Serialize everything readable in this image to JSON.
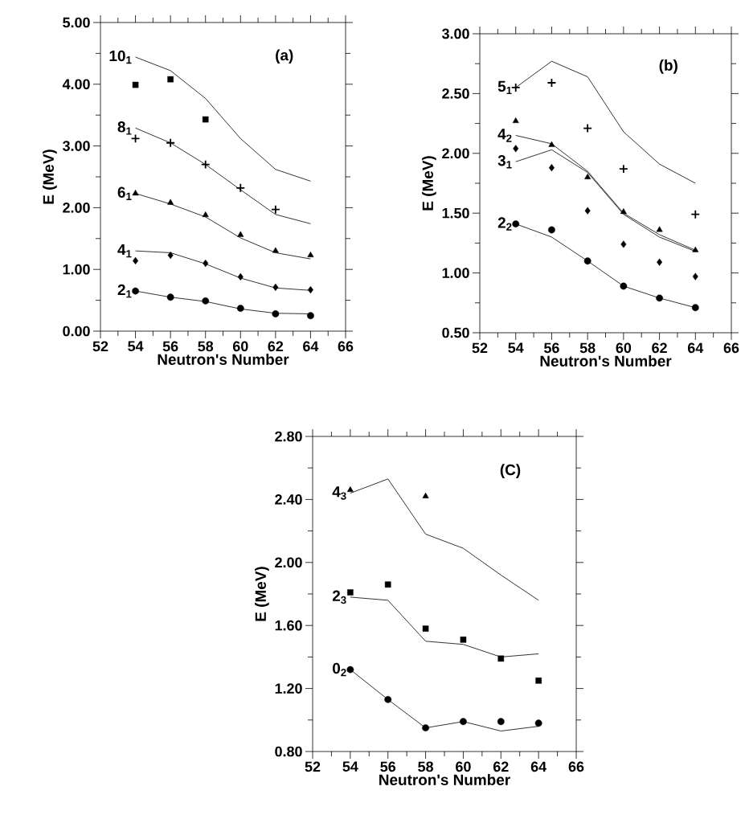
{
  "chart_data": [
    {
      "type": "line",
      "xlabel": "Neutron's Number",
      "ylabel": "E (MeV)",
      "xlim": [
        52,
        66
      ],
      "ylim": [
        0,
        5
      ],
      "x": [
        54,
        56,
        58,
        60,
        62,
        64
      ],
      "xticks": [
        52,
        54,
        56,
        58,
        60,
        62,
        64,
        66
      ],
      "yticks": [
        {
          "value": 0,
          "label": "0.00"
        },
        {
          "value": 1,
          "label": "1.00"
        },
        {
          "value": 2,
          "label": "2.00"
        },
        {
          "value": 3,
          "label": "3.00"
        },
        {
          "value": 4,
          "label": "4.00"
        },
        {
          "value": 5,
          "label": "5.00"
        }
      ],
      "series": [
        {
          "type": "scatter",
          "marker": "square",
          "color": "#000000",
          "values": [
            3.99,
            4.08,
            3.43,
            null,
            null,
            null
          ]
        },
        {
          "name": "10$_{1}$",
          "marker": "none",
          "color": "#000000",
          "values": [
            4.44,
            4.22,
            3.77,
            3.12,
            2.62,
            2.43
          ]
        },
        {
          "type": "scatter",
          "marker": "cross",
          "color": "#000000",
          "values": [
            3.12,
            3.05,
            2.7,
            2.32,
            1.97,
            null
          ]
        },
        {
          "name": "8$_{1}$",
          "marker": "none",
          "color": "#000000",
          "values": [
            3.29,
            3.05,
            2.7,
            2.29,
            1.89,
            1.74
          ]
        },
        {
          "type": "scatter",
          "marker": "triangle",
          "color": "#000000",
          "values": [
            2.23,
            2.08,
            1.88,
            1.56,
            1.3,
            1.23
          ]
        },
        {
          "name": "6$_{1}$",
          "marker": "none",
          "color": "#000000",
          "values": [
            2.23,
            2.06,
            1.85,
            1.51,
            1.27,
            1.17
          ]
        },
        {
          "type": "scatter",
          "marker": "diamond",
          "color": "#000000",
          "values": [
            1.14,
            1.23,
            1.1,
            0.88,
            0.71,
            0.67
          ]
        },
        {
          "name": "4$_{1}$",
          "marker": "none",
          "color": "#000000",
          "values": [
            1.3,
            1.27,
            1.09,
            0.86,
            0.7,
            0.66
          ]
        },
        {
          "type": "scatter",
          "marker": "circle",
          "color": "#000000",
          "values": [
            0.65,
            0.55,
            0.49,
            0.37,
            0.28,
            0.25
          ]
        },
        {
          "name": "2$_{1}$",
          "marker": "none",
          "color": "#000000",
          "values": [
            0.65,
            0.55,
            0.48,
            0.36,
            0.29,
            0.28
          ]
        }
      ],
      "legend": "left",
      "annotations": [
        "(a)"
      ]
    },
    {
      "type": "line",
      "xlabel": "Neutron's Number",
      "ylabel": "E (MeV)",
      "xlim": [
        52,
        66
      ],
      "ylim": [
        0.5,
        3
      ],
      "x": [
        54,
        56,
        58,
        60,
        62,
        64
      ],
      "xticks": [
        52,
        54,
        56,
        58,
        60,
        62,
        64,
        66
      ],
      "yticks": [
        {
          "value": 0.5,
          "label": "0.50"
        },
        {
          "value": 1,
          "label": "1.00"
        },
        {
          "value": 1.5,
          "label": "1.50"
        },
        {
          "value": 2,
          "label": "2.00"
        },
        {
          "value": 2.5,
          "label": "2.50"
        },
        {
          "value": 3,
          "label": "3.00"
        }
      ],
      "series": [
        {
          "type": "scatter",
          "marker": "cross",
          "color": "#000000",
          "values": [
            2.55,
            2.59,
            2.21,
            1.87,
            null,
            1.49
          ]
        },
        {
          "name": "5$_{1}$",
          "marker": "none",
          "color": "#000000",
          "values": [
            2.55,
            2.77,
            2.64,
            2.18,
            1.91,
            1.75
          ]
        },
        {
          "type": "scatter",
          "marker": "triangle",
          "color": "#000000",
          "values": [
            2.27,
            2.07,
            1.8,
            1.51,
            1.36,
            1.19
          ]
        },
        {
          "name": "4$_{2}$",
          "marker": "none",
          "color": "#000000",
          "values": [
            2.15,
            2.08,
            1.85,
            1.5,
            1.32,
            1.19
          ]
        },
        {
          "type": "scatter",
          "marker": "diamond",
          "color": "#000000",
          "values": [
            2.04,
            1.88,
            1.52,
            1.24,
            1.09,
            0.97
          ]
        },
        {
          "name": "3$_{1}$",
          "marker": "none",
          "color": "#000000",
          "values": [
            1.93,
            2.03,
            1.84,
            1.49,
            1.3,
            1.18
          ]
        },
        {
          "type": "scatter",
          "marker": "circle",
          "color": "#000000",
          "values": [
            1.41,
            1.36,
            1.1,
            0.89,
            0.79,
            0.71
          ]
        },
        {
          "name": "2$_{2}$",
          "marker": "none",
          "color": "#000000",
          "values": [
            1.41,
            1.3,
            1.1,
            0.89,
            0.79,
            0.71
          ]
        }
      ],
      "legend": "left",
      "annotations": [
        "(b)"
      ]
    },
    {
      "type": "line",
      "xlabel": "Neutron's Number",
      "ylabel": "E (MeV)",
      "xlim": [
        52,
        66
      ],
      "ylim": [
        0.8,
        2.8
      ],
      "x": [
        54,
        56,
        58,
        60,
        62,
        64
      ],
      "xticks": [
        52,
        54,
        56,
        58,
        60,
        62,
        64,
        66
      ],
      "yticks": [
        {
          "value": 0.8,
          "label": "0.80"
        },
        {
          "value": 1.2,
          "label": "1.20"
        },
        {
          "value": 1.6,
          "label": "1.60"
        },
        {
          "value": 2.0,
          "label": "2.00"
        },
        {
          "value": 2.4,
          "label": "2.40"
        },
        {
          "value": 2.8,
          "label": "2.80"
        }
      ],
      "series": [
        {
          "type": "scatter",
          "marker": "triangle",
          "color": "#000000",
          "values": [
            2.46,
            null,
            2.42,
            null,
            null,
            null
          ]
        },
        {
          "name": "4$_{3}$",
          "marker": "none",
          "color": "#000000",
          "values": [
            2.44,
            2.53,
            2.18,
            2.09,
            1.92,
            1.76
          ]
        },
        {
          "type": "scatter",
          "marker": "square",
          "color": "#000000",
          "values": [
            1.81,
            1.86,
            1.58,
            1.51,
            1.39,
            1.25
          ]
        },
        {
          "name": "2$_{3}$",
          "marker": "none",
          "color": "#000000",
          "values": [
            1.78,
            1.76,
            1.5,
            1.48,
            1.4,
            1.42
          ]
        },
        {
          "type": "scatter",
          "marker": "circle",
          "color": "#000000",
          "values": [
            1.32,
            1.13,
            0.95,
            0.99,
            0.99,
            0.98
          ]
        },
        {
          "name": "0$_{2}$",
          "marker": "none",
          "color": "#000000",
          "values": [
            1.32,
            1.13,
            0.95,
            0.99,
            0.93,
            0.96
          ]
        }
      ],
      "legend": "left",
      "annotations": [
        "(C)"
      ]
    }
  ]
}
